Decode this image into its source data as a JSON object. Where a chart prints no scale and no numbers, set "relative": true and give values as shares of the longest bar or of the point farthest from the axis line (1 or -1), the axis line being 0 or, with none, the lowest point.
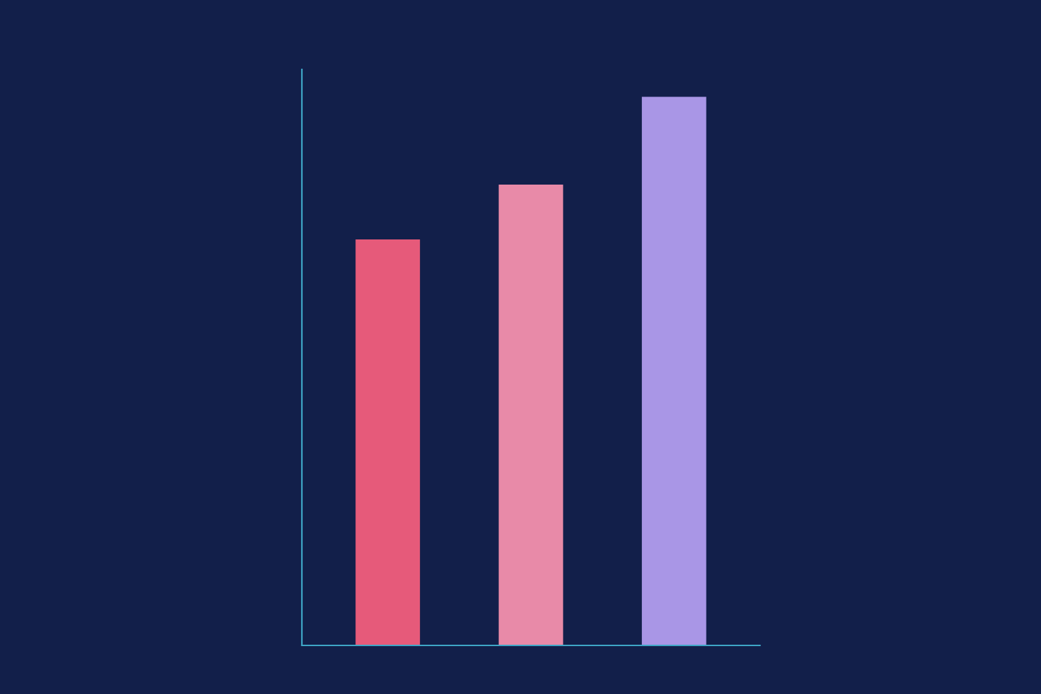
{
  "chart_data": {
    "type": "bar",
    "relative": true,
    "categories": [
      null,
      null,
      null
    ],
    "values": [
      0.74,
      0.84,
      1
    ],
    "colors": [
      "#e65a7a",
      "#e88aa8",
      "#a996e6"
    ]
  }
}
